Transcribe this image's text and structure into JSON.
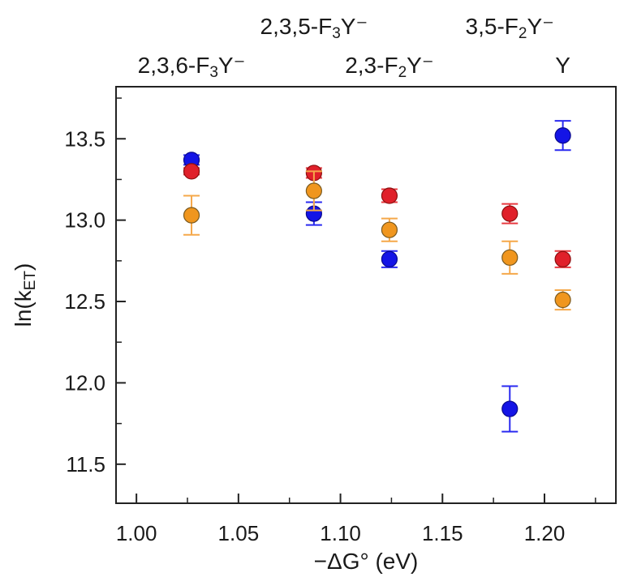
{
  "chart_data": {
    "type": "scatter",
    "title": "",
    "xlabel": "−ΔG° (eV)",
    "ylabel_main": "ln(k",
    "ylabel_sub": "ET",
    "ylabel_close": ")",
    "xlim": [
      0.99,
      1.235
    ],
    "ylim": [
      11.26,
      13.82
    ],
    "xticks": [
      {
        "value": 1.0,
        "label": "1.00"
      },
      {
        "value": 1.05,
        "label": "1.05"
      },
      {
        "value": 1.1,
        "label": "1.10"
      },
      {
        "value": 1.15,
        "label": "1.15"
      },
      {
        "value": 1.2,
        "label": "1.20"
      }
    ],
    "yticks": [
      {
        "value": 11.5,
        "label": "11.5"
      },
      {
        "value": 12.0,
        "label": "12.0"
      },
      {
        "value": 12.5,
        "label": "12.5"
      },
      {
        "value": 13.0,
        "label": "13.0"
      },
      {
        "value": 13.5,
        "label": "13.5"
      }
    ],
    "grid": false,
    "top_labels": [
      {
        "x": 1.027,
        "row": "lower",
        "pre": "2,3,6-F",
        "sub": "3",
        "post": "Y⁻"
      },
      {
        "x": 1.087,
        "row": "upper",
        "pre": "2,3,5-F",
        "sub": "3",
        "post": "Y⁻"
      },
      {
        "x": 1.124,
        "row": "lower",
        "pre": "2,3-F",
        "sub": "2",
        "post": "Y⁻"
      },
      {
        "x": 1.183,
        "row": "upper",
        "pre": "3,5-F",
        "sub": "2",
        "post": "Y⁻"
      },
      {
        "x": 1.209,
        "row": "lower",
        "pre": "Y",
        "sub": "",
        "post": ""
      }
    ],
    "series": [
      {
        "color": "#1414e6",
        "edge": "#0a0a8c",
        "errcolor": "#2a2af0",
        "points": [
          {
            "x": 1.027,
            "y": 13.37,
            "err": 0.03
          },
          {
            "x": 1.087,
            "y": 13.04,
            "err": 0.07
          },
          {
            "x": 1.124,
            "y": 12.76,
            "err": 0.05
          },
          {
            "x": 1.183,
            "y": 11.84,
            "err": 0.14
          },
          {
            "x": 1.209,
            "y": 13.52,
            "err": 0.09
          }
        ]
      },
      {
        "color": "#e0202a",
        "edge": "#8a1010",
        "errcolor": "#e83a40",
        "points": [
          {
            "x": 1.027,
            "y": 13.3,
            "err": 0.02
          },
          {
            "x": 1.087,
            "y": 13.29,
            "err": 0.03
          },
          {
            "x": 1.124,
            "y": 13.15,
            "err": 0.04
          },
          {
            "x": 1.183,
            "y": 13.04,
            "err": 0.06
          },
          {
            "x": 1.209,
            "y": 12.76,
            "err": 0.05
          }
        ]
      },
      {
        "color": "#f0961e",
        "edge": "#7a5a20",
        "errcolor": "#f5a84a",
        "points": [
          {
            "x": 1.027,
            "y": 13.03,
            "err": 0.12
          },
          {
            "x": 1.087,
            "y": 13.18,
            "err": 0.12
          },
          {
            "x": 1.124,
            "y": 12.94,
            "err": 0.07
          },
          {
            "x": 1.183,
            "y": 12.77,
            "err": 0.1
          },
          {
            "x": 1.209,
            "y": 12.51,
            "err": 0.06
          }
        ]
      }
    ]
  }
}
